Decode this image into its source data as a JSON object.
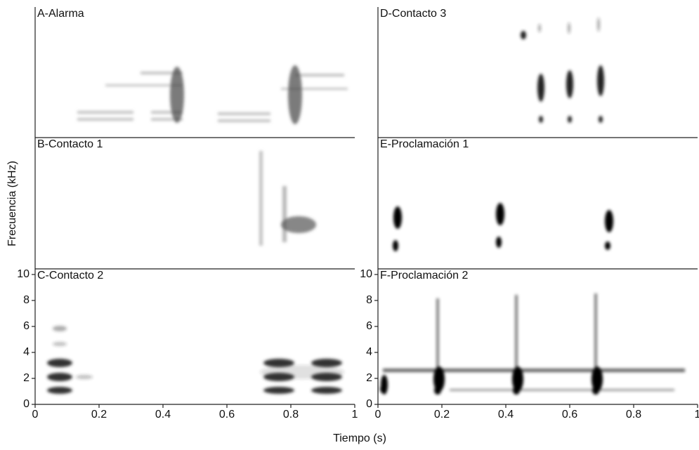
{
  "figure": {
    "xlabel": "Tiempo (s)",
    "ylabel": "Frecuencia (kHz)"
  },
  "chart_data": [
    {
      "type": "spectrogram",
      "title": "A-Alarma",
      "xlim": [
        0,
        1
      ],
      "ylim": [
        0,
        10
      ]
    },
    {
      "type": "spectrogram",
      "title": "B-Contacto 1",
      "xlim": [
        0,
        1
      ],
      "ylim": [
        0,
        10
      ]
    },
    {
      "type": "spectrogram",
      "title": "C-Contacto 2",
      "xlim": [
        0,
        1
      ],
      "ylim": [
        0,
        10
      ],
      "xticks": [
        0,
        0.2,
        0.4,
        0.6,
        0.8,
        1
      ],
      "yticks": [
        0,
        2,
        4,
        6,
        8,
        10
      ]
    },
    {
      "type": "spectrogram",
      "title": "D-Contacto 3",
      "xlim": [
        0,
        1
      ],
      "ylim": [
        0,
        10
      ]
    },
    {
      "type": "spectrogram",
      "title": "E-Proclamación 1",
      "xlim": [
        0,
        1
      ],
      "ylim": [
        0,
        10
      ]
    },
    {
      "type": "spectrogram",
      "title": "F-Proclamación 2",
      "xlim": [
        0,
        1
      ],
      "ylim": [
        0,
        10
      ],
      "xticks": [
        0,
        0.2,
        0.4,
        0.6,
        0.8,
        1
      ],
      "yticks": [
        0,
        2,
        4,
        6,
        8,
        10
      ]
    }
  ]
}
